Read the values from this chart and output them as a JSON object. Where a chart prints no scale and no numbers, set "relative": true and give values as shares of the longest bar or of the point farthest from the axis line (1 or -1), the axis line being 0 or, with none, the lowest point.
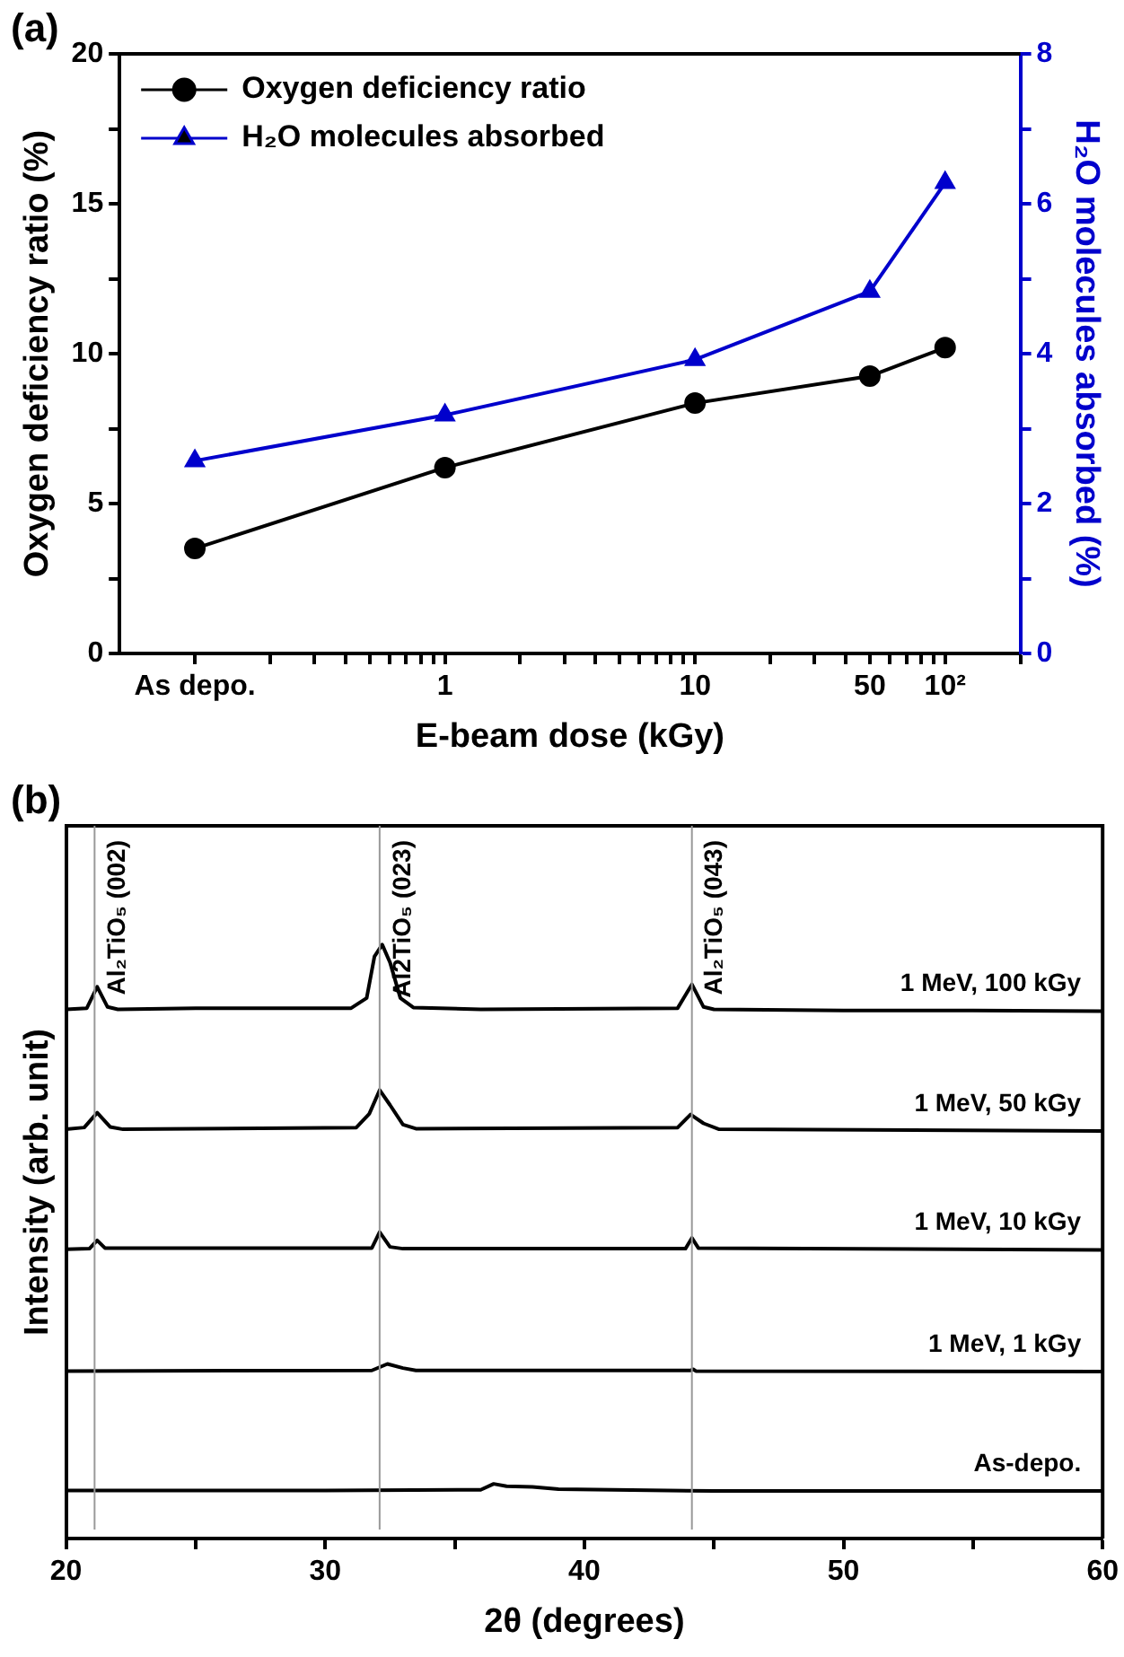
{
  "chart_data": [
    {
      "type": "line",
      "title": "(a)",
      "xlabel": "E-beam dose (kGy)",
      "ylabel": "Oxygen deficiency ratio (%)",
      "y2label": "H₂O molecules absorbed (%)",
      "log": "x",
      "legend": "top left",
      "x": [
        0.1,
        1,
        10,
        50,
        100
      ],
      "xlim": [
        0.05,
        200
      ],
      "xticks": [
        {
          "value": 0.1,
          "label": "As depo."
        },
        {
          "value": 0.2,
          "label": null
        },
        {
          "value": 0.3,
          "label": null
        },
        {
          "value": 0.4,
          "label": null
        },
        {
          "value": 0.5,
          "label": null
        },
        {
          "value": 0.6,
          "label": null
        },
        {
          "value": 0.7,
          "label": null
        },
        {
          "value": 0.8,
          "label": null
        },
        {
          "value": 0.9,
          "label": null
        },
        1,
        {
          "value": 2,
          "label": null
        },
        {
          "value": 3,
          "label": null
        },
        {
          "value": 4,
          "label": null
        },
        {
          "value": 5,
          "label": null
        },
        {
          "value": 6,
          "label": null
        },
        {
          "value": 7,
          "label": null
        },
        {
          "value": 8,
          "label": null
        },
        {
          "value": 9,
          "label": null
        },
        10,
        {
          "value": 20,
          "label": null
        },
        {
          "value": 30,
          "label": null
        },
        {
          "value": 40,
          "label": null
        },
        50,
        {
          "value": 60,
          "label": null
        },
        {
          "value": 70,
          "label": null
        },
        {
          "value": 80,
          "label": null
        },
        {
          "value": 90,
          "label": null
        },
        {
          "value": 100,
          "label": "10²"
        },
        {
          "value": 200,
          "label": null
        }
      ],
      "ylim": [
        0,
        20
      ],
      "yticks": [
        0,
        {
          "value": 2.5,
          "label": null
        },
        5,
        {
          "value": 7.5,
          "label": null
        },
        10,
        {
          "value": 12.5,
          "label": null
        },
        15,
        {
          "value": 17.5,
          "label": null
        },
        20
      ],
      "y2lim": [
        0,
        8
      ],
      "y2ticks": [
        0,
        {
          "value": 1,
          "label": null
        },
        2,
        {
          "value": 3,
          "label": null
        },
        4,
        {
          "value": 5,
          "label": null
        },
        6,
        {
          "value": 7,
          "label": null
        },
        8
      ],
      "series": [
        {
          "name": "Oxygen deficiency ratio",
          "color": "#000000",
          "marker": "circle",
          "values": [
            3.5,
            6.2,
            8.35,
            9.25,
            10.2
          ]
        },
        {
          "name": "H₂O molecules absorbed",
          "color": "#0000cc",
          "marker": "triangle",
          "axis": "y2",
          "values": [
            2.57,
            3.18,
            3.92,
            4.83,
            6.28
          ]
        }
      ]
    },
    {
      "type": "line",
      "title": "(b)",
      "xlabel": "2θ (degrees)",
      "ylabel": "Intensity (arb. unit)",
      "relative": true,
      "legend": false,
      "marker": "none",
      "xlim": [
        20,
        60
      ],
      "xticks": [
        20,
        {
          "value": 25,
          "label": null
        },
        30,
        {
          "value": 35,
          "label": null
        },
        40,
        {
          "value": 45,
          "label": null
        },
        50,
        {
          "value": 55,
          "label": null
        },
        60
      ],
      "ref_lines": [
        {
          "axis": "x",
          "value": 21.1,
          "label": "Al₂TiO₅ (002)",
          "color": "#999999"
        },
        {
          "axis": "x",
          "value": 32.1,
          "label": "Al2TiO₅ (023)",
          "color": "#999999"
        },
        {
          "axis": "x",
          "value": 44.15,
          "label": "Al₂TiO₅ (043)",
          "color": "#999999"
        }
      ],
      "series": [
        {
          "name": "1 MeV, 100 kGy",
          "color": "#000000",
          "x": [
            20,
            20.8,
            21.2,
            21.6,
            22,
            25,
            31,
            31.6,
            31.9,
            32.2,
            32.5,
            32.9,
            33.4,
            36,
            43.6,
            44.15,
            44.6,
            45,
            50,
            55,
            60
          ],
          "values": [
            0.891,
            0.893,
            0.929,
            0.895,
            0.891,
            0.893,
            0.893,
            0.91,
            0.98,
            1.0,
            0.97,
            0.91,
            0.894,
            0.891,
            0.893,
            0.933,
            0.895,
            0.891,
            0.889,
            0.889,
            0.888
          ]
        },
        {
          "name": "1 MeV, 50 kGy",
          "color": "#000000",
          "x": [
            20,
            20.7,
            21.2,
            21.7,
            22.2,
            31.2,
            31.7,
            32.1,
            32.5,
            33,
            33.5,
            43.6,
            44.1,
            44.6,
            45.2,
            60
          ],
          "values": [
            0.689,
            0.692,
            0.717,
            0.693,
            0.689,
            0.692,
            0.715,
            0.755,
            0.73,
            0.697,
            0.69,
            0.692,
            0.714,
            0.699,
            0.689,
            0.686
          ]
        },
        {
          "name": "1 MeV, 10 kGy",
          "color": "#000000",
          "x": [
            20,
            20.9,
            21.2,
            21.5,
            31.8,
            32.1,
            32.5,
            33,
            43.9,
            44.15,
            44.4,
            60
          ],
          "values": [
            0.487,
            0.488,
            0.502,
            0.489,
            0.489,
            0.516,
            0.491,
            0.488,
            0.488,
            0.506,
            0.489,
            0.486
          ]
        },
        {
          "name": "1 MeV, 1 kGy",
          "color": "#000000",
          "x": [
            20,
            31.8,
            32.4,
            33,
            33.5,
            44.1,
            44.2,
            44.3,
            60
          ],
          "values": [
            0.282,
            0.283,
            0.294,
            0.287,
            0.283,
            0.283,
            0.285,
            0.282,
            0.281
          ]
        },
        {
          "name": "As-depo.",
          "color": "#000000",
          "x": [
            20,
            30,
            36,
            36.5,
            37,
            38,
            39,
            45,
            60
          ],
          "values": [
            0.081,
            0.081,
            0.082,
            0.092,
            0.088,
            0.087,
            0.083,
            0.08,
            0.08
          ]
        }
      ]
    }
  ]
}
